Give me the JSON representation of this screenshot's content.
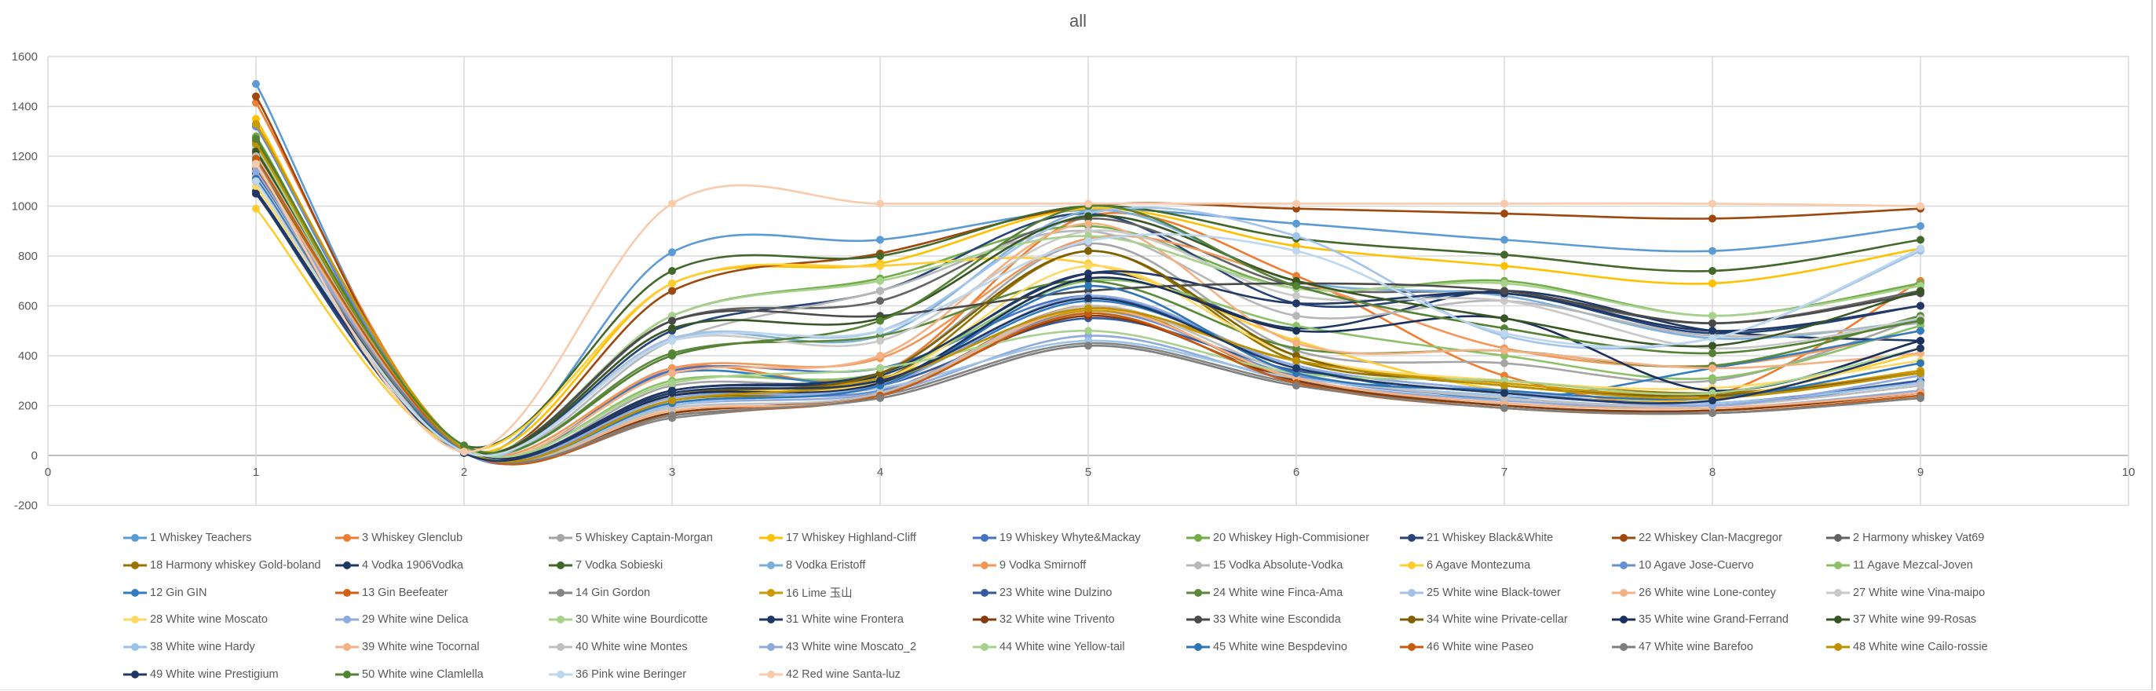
{
  "chart_data": {
    "type": "line",
    "title": "all",
    "xlabel": "",
    "ylabel": "",
    "xlim": [
      0,
      10
    ],
    "ylim": [
      -200,
      1600
    ],
    "x_ticks": [
      "0",
      "1",
      "2",
      "3",
      "4",
      "5",
      "6",
      "7",
      "8",
      "9",
      "10"
    ],
    "y_ticks": [
      "-200",
      "0",
      "200",
      "400",
      "600",
      "800",
      "1000",
      "1200",
      "1400",
      "1600"
    ],
    "grid": true,
    "smoothed": true,
    "legend_position": "bottom",
    "x": [
      1,
      2,
      3,
      4,
      5,
      6,
      7,
      8,
      9
    ],
    "series": [
      {
        "name": "1 Whiskey Teachers",
        "color": "#5B9BD5",
        "values": [
          1490,
          15,
          815,
          865,
          985,
          930,
          865,
          820,
          920
        ]
      },
      {
        "name": "3 Whiskey Glenclub",
        "color": "#ED7D31",
        "values": [
          1415,
          20,
          350,
          330,
          960,
          720,
          320,
          240,
          700
        ]
      },
      {
        "name": "5 Whiskey Captain-Morgan",
        "color": "#A5A5A5",
        "values": [
          1230,
          20,
          280,
          330,
          850,
          420,
          370,
          300,
          550
        ]
      },
      {
        "name": "17 Whiskey Highland-Cliff",
        "color": "#FFC000",
        "values": [
          1350,
          25,
          690,
          770,
          990,
          840,
          760,
          690,
          830
        ]
      },
      {
        "name": "19 Whiskey Whyte&Mackay",
        "color": "#4472C4",
        "values": [
          1320,
          15,
          340,
          350,
          640,
          360,
          260,
          200,
          300
        ]
      },
      {
        "name": "20 Whiskey High-Commisioner",
        "color": "#70AD47",
        "values": [
          1280,
          20,
          560,
          710,
          920,
          670,
          700,
          560,
          690
        ]
      },
      {
        "name": "21 Whiskey Black&White",
        "color": "#264478",
        "values": [
          1050,
          10,
          500,
          660,
          970,
          610,
          650,
          490,
          600
        ]
      },
      {
        "name": "22 Whiskey Clan-Macgregor",
        "color": "#9E480E",
        "values": [
          1440,
          20,
          660,
          810,
          1000,
          990,
          970,
          950,
          990
        ]
      },
      {
        "name": "2 Harmony whiskey Vat69",
        "color": "#636363",
        "values": [
          1200,
          20,
          540,
          620,
          950,
          680,
          650,
          530,
          660
        ]
      },
      {
        "name": "18 Harmony whiskey Gold-boland",
        "color": "#997300",
        "values": [
          1150,
          25,
          220,
          300,
          820,
          380,
          300,
          250,
          330
        ]
      },
      {
        "name": "4 Vodka 1906Vodka",
        "color": "#1F3864",
        "values": [
          1060,
          10,
          260,
          320,
          730,
          510,
          660,
          500,
          460
        ]
      },
      {
        "name": "7 Vodka Sobieski",
        "color": "#43682B",
        "values": [
          1260,
          40,
          740,
          800,
          1000,
          870,
          805,
          740,
          865
        ]
      },
      {
        "name": "8 Vodka Eristoff",
        "color": "#7CAFDD",
        "values": [
          1180,
          15,
          470,
          480,
          980,
          700,
          640,
          470,
          540
        ]
      },
      {
        "name": "9 Vodka Smirnoff",
        "color": "#F1975A",
        "values": [
          1120,
          20,
          350,
          390,
          870,
          700,
          430,
          360,
          500
        ]
      },
      {
        "name": "15 Vodka Absolute-Vodka",
        "color": "#B7B7B7",
        "values": [
          1220,
          20,
          460,
          660,
          900,
          560,
          620,
          480,
          530
        ]
      },
      {
        "name": "6 Agave Montezuma",
        "color": "#FFCD33",
        "values": [
          990,
          25,
          690,
          760,
          770,
          460,
          260,
          230,
          410
        ]
      },
      {
        "name": "10 Agave Jose-Cuervo",
        "color": "#698ED0",
        "values": [
          1320,
          15,
          240,
          260,
          580,
          320,
          230,
          200,
          280
        ]
      },
      {
        "name": "11 Agave Mezcal-Joven",
        "color": "#8CC168",
        "values": [
          1180,
          20,
          300,
          330,
          700,
          520,
          400,
          310,
          520
        ]
      },
      {
        "name": "12 Gin GIN",
        "color": "#327DC2",
        "values": [
          1150,
          10,
          330,
          300,
          620,
          360,
          230,
          350,
          500
        ]
      },
      {
        "name": "13 Gin Beefeater",
        "color": "#D26012",
        "values": [
          1210,
          20,
          170,
          250,
          600,
          300,
          200,
          180,
          250
        ]
      },
      {
        "name": "14 Gin Gordon",
        "color": "#848484",
        "values": [
          1140,
          25,
          150,
          240,
          450,
          290,
          200,
          170,
          230
        ]
      },
      {
        "name": "16 Lime 玉山",
        "color": "#CC9A00",
        "values": [
          1330,
          30,
          220,
          310,
          580,
          380,
          290,
          240,
          340
        ]
      },
      {
        "name": "23 White wine Dulzino",
        "color": "#335AA1",
        "values": [
          1100,
          15,
          200,
          280,
          550,
          340,
          250,
          210,
          300
        ]
      },
      {
        "name": "24 White wine Finca-Ama",
        "color": "#5A8A39",
        "values": [
          1250,
          30,
          410,
          480,
          700,
          430,
          420,
          360,
          560
        ]
      },
      {
        "name": "25 White wine Black-tower",
        "color": "#A3C4E8",
        "values": [
          1140,
          10,
          470,
          500,
          970,
          880,
          480,
          470,
          820
        ]
      },
      {
        "name": "26 White wine Lone-contey",
        "color": "#F4B183",
        "values": [
          1120,
          15,
          330,
          400,
          930,
          450,
          420,
          350,
          410
        ]
      },
      {
        "name": "27 White wine Vina-maipo",
        "color": "#C9C9C9",
        "values": [
          1150,
          20,
          460,
          460,
          900,
          640,
          620,
          430,
          550
        ]
      },
      {
        "name": "28 White wine Moscato",
        "color": "#FFD966",
        "values": [
          1080,
          20,
          250,
          300,
          760,
          400,
          300,
          270,
          380
        ]
      },
      {
        "name": "29 White wine Delica",
        "color": "#8FAADC",
        "values": [
          1180,
          15,
          200,
          250,
          480,
          300,
          220,
          190,
          260
        ]
      },
      {
        "name": "30 White wine Bourdicotte",
        "color": "#A9D18E",
        "values": [
          1240,
          25,
          560,
          700,
          880,
          670,
          690,
          560,
          680
        ]
      },
      {
        "name": "31 White wine Frontera",
        "color": "#203864",
        "values": [
          1100,
          20,
          260,
          330,
          730,
          610,
          650,
          500,
          600
        ]
      },
      {
        "name": "32 White wine Trivento",
        "color": "#843C0C",
        "values": [
          1150,
          20,
          170,
          250,
          560,
          300,
          200,
          180,
          250
        ]
      },
      {
        "name": "33 White wine Escondida",
        "color": "#4A4A4A",
        "values": [
          1200,
          20,
          540,
          560,
          660,
          690,
          660,
          530,
          650
        ]
      },
      {
        "name": "34 White wine Private-cellar",
        "color": "#7F6000",
        "values": [
          1170,
          20,
          240,
          330,
          820,
          400,
          280,
          240,
          330
        ]
      },
      {
        "name": "35 White wine Grand-Ferrand",
        "color": "#1A2F5A",
        "values": [
          1130,
          15,
          240,
          290,
          710,
          500,
          550,
          260,
          460
        ]
      },
      {
        "name": "37 White wine 99-Rosas",
        "color": "#375623",
        "values": [
          1220,
          25,
          510,
          550,
          960,
          700,
          550,
          440,
          660
        ]
      },
      {
        "name": "38 White wine Hardy",
        "color": "#9DC3E6",
        "values": [
          1120,
          15,
          200,
          270,
          460,
          310,
          240,
          210,
          290
        ]
      },
      {
        "name": "39 White wine Tocornal",
        "color": "#F4B183",
        "values": [
          1160,
          20,
          180,
          240,
          590,
          310,
          210,
          190,
          250
        ]
      },
      {
        "name": "40 White wine Montes",
        "color": "#BFBFBF",
        "values": [
          1200,
          25,
          190,
          250,
          600,
          330,
          230,
          200,
          280
        ]
      },
      {
        "name": "43 White wine Moscato_2",
        "color": "#8FAADC",
        "values": [
          1140,
          20,
          230,
          280,
          640,
          360,
          260,
          200,
          320
        ]
      },
      {
        "name": "44 White wine Yellow-tail",
        "color": "#A9D18E",
        "values": [
          1190,
          30,
          290,
          350,
          500,
          330,
          300,
          250,
          430
        ]
      },
      {
        "name": "45 White wine Bespdevino",
        "color": "#2E75B6",
        "values": [
          1110,
          15,
          210,
          280,
          680,
          330,
          260,
          230,
          370
        ]
      },
      {
        "name": "46 White wine Paseo",
        "color": "#C55A11",
        "values": [
          1190,
          20,
          160,
          240,
          570,
          290,
          190,
          170,
          240
        ]
      },
      {
        "name": "47 White wine Barefoo",
        "color": "#7F7F7F",
        "values": [
          1100,
          20,
          160,
          230,
          440,
          280,
          190,
          170,
          230
        ]
      },
      {
        "name": "48 White wine Cailo-rossie",
        "color": "#BF9000",
        "values": [
          1250,
          25,
          220,
          300,
          590,
          380,
          280,
          230,
          330
        ]
      },
      {
        "name": "49 White wine Prestigium",
        "color": "#203864",
        "values": [
          1050,
          10,
          250,
          300,
          630,
          350,
          250,
          220,
          430
        ]
      },
      {
        "name": "50 White wine Clamlella",
        "color": "#548235",
        "values": [
          1270,
          40,
          400,
          540,
          1000,
          680,
          510,
          410,
          540
        ]
      },
      {
        "name": "36 Pink wine Beringer",
        "color": "#BDD7EE",
        "values": [
          1100,
          15,
          460,
          500,
          860,
          820,
          490,
          470,
          830
        ]
      },
      {
        "name": "42 Red wine Santa-luz",
        "color": "#F8CBAD",
        "values": [
          1170,
          15,
          1010,
          1010,
          1010,
          1010,
          1010,
          1010,
          1000
        ]
      }
    ]
  }
}
